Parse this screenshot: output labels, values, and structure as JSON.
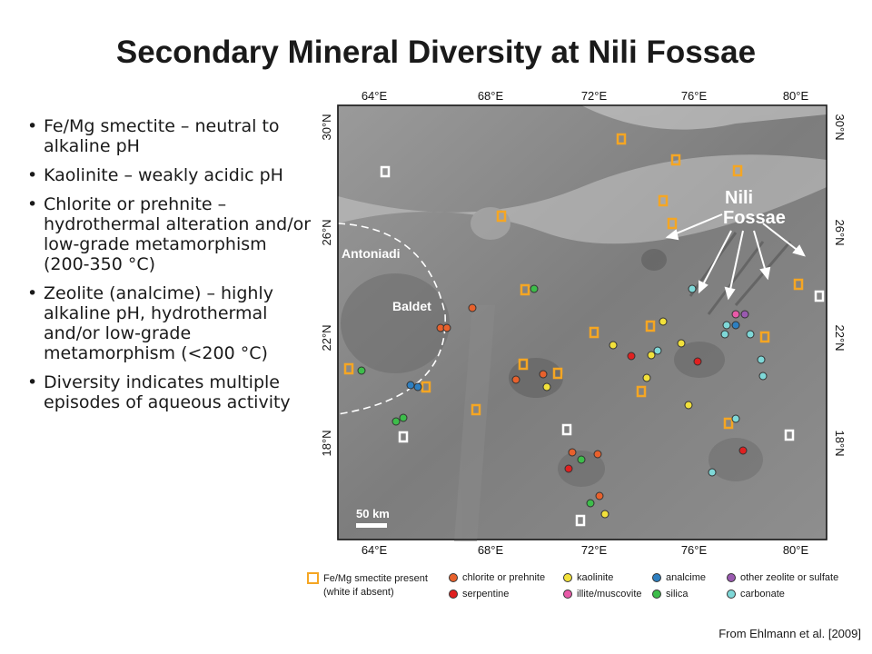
{
  "title": "Secondary Mineral Diversity at Nili Fossae",
  "bullets": [
    "Fe/Mg smectite – neutral to alkaline pH",
    "Kaolinite – weakly acidic pH",
    "Chlorite or prehnite – hydrothermal alteration and/or low-grade metamorphism (200-350 °C)",
    "Zeolite (analcime) – highly alkaline pH, hydrothermal and/or low-grade metamorphism (<200 °C)",
    "Diversity indicates multiple episodes of aqueous activity"
  ],
  "map": {
    "lon_labels": [
      "64°E",
      "68°E",
      "72°E",
      "76°E",
      "80°E"
    ],
    "lat_labels": [
      "30°N",
      "26°N",
      "22°N",
      "18°N"
    ],
    "place_labels": {
      "nili": "Nili",
      "fossae": "Fossae",
      "antoniadi": "Antoniadi",
      "baldet": "Baldet"
    },
    "scale_label": "50 km"
  },
  "legend": {
    "smectite": "Fe/Mg smectite present",
    "smectite_sub": "(white if absent)",
    "chlorite": "chlorite or prehnite",
    "serpentine": "serpentine",
    "kaolinite": "kaolinite",
    "illite": "illite/muscovite",
    "analcime": "analcime",
    "silica": "silica",
    "zeolite": "other zeolite or sulfate",
    "carbonate": "carbonate"
  },
  "colors": {
    "smectite": "#f5a623",
    "chlorite": "#e8612c",
    "serpentine": "#e02020",
    "kaolinite": "#f2e13b",
    "illite": "#e85aa8",
    "analcime": "#2e7fc0",
    "silica": "#3dbd4a",
    "zeolite": "#9a5ab0",
    "carbonate": "#7fd8d8"
  },
  "credit": "From Ehlmann et al. [2009]"
}
